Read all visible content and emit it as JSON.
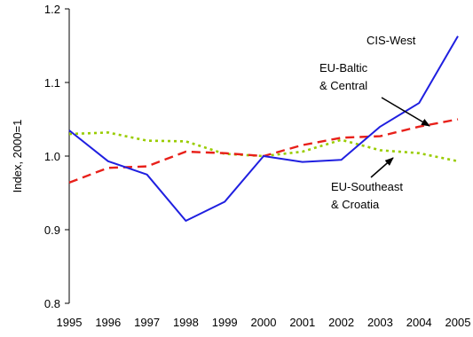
{
  "chart_data": {
    "type": "line",
    "xlabel": "",
    "ylabel": "Index, 2000=1",
    "ylim": [
      0.8,
      1.2
    ],
    "xlim": [
      1995,
      2005
    ],
    "x": [
      1995,
      1996,
      1997,
      1998,
      1999,
      2000,
      2001,
      2002,
      2003,
      2004,
      2005
    ],
    "x_tick_labels": [
      "1995",
      "1996",
      "1997",
      "1998",
      "1999",
      "2000",
      "2001",
      "2002",
      "2003",
      "2004",
      "2005"
    ],
    "y_ticks": [
      0.8,
      0.9,
      1.0,
      1.1,
      1.2
    ],
    "y_tick_labels": [
      "0.8",
      "0.9",
      "1.0",
      "1.1",
      "1.2"
    ],
    "grid": false,
    "legend": "none",
    "series": [
      {
        "key": "cis",
        "name": "CIS-West",
        "color": "#1f1fe0",
        "style": "solid",
        "values": [
          1.035,
          0.993,
          0.975,
          0.912,
          0.938,
          1.0,
          0.992,
          0.995,
          1.04,
          1.072,
          1.163
        ]
      },
      {
        "key": "baltic",
        "name": "EU-Baltic & Central",
        "color": "#e8201a",
        "style": "dashed",
        "values": [
          0.964,
          0.984,
          0.986,
          1.006,
          1.004,
          1.0,
          1.015,
          1.025,
          1.027,
          1.04,
          1.05
        ]
      },
      {
        "key": "southeast",
        "name": "EU-Southeast & Croatia",
        "color": "#99cc00",
        "style": "dotted",
        "values": [
          1.03,
          1.032,
          1.021,
          1.02,
          1.003,
          1.0,
          1.006,
          1.022,
          1.008,
          1.004,
          0.993
        ]
      }
    ],
    "annotations": {
      "cis": [
        "CIS-West"
      ],
      "baltic": [
        "EU-Baltic",
        "& Central"
      ],
      "southeast": [
        "EU-Southeast",
        "& Croatia"
      ]
    }
  }
}
